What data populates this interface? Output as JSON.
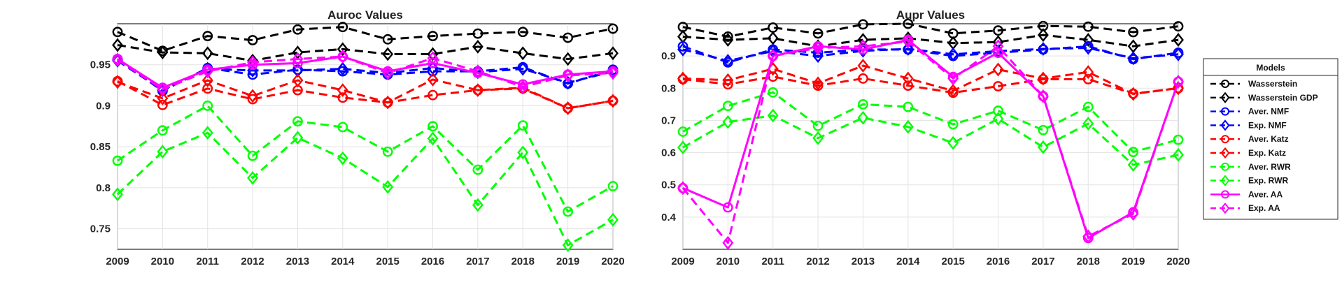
{
  "chart_data": [
    {
      "type": "line",
      "title": "Auroc Values",
      "xlabel": "",
      "ylabel": "",
      "x": [
        2009,
        2010,
        2011,
        2012,
        2013,
        2014,
        2015,
        2016,
        2017,
        2018,
        2019,
        2020
      ],
      "x_ticks": [
        "2009",
        "2010",
        "2011",
        "2012",
        "2013",
        "2014",
        "2015",
        "2016",
        "2017",
        "2018",
        "2019",
        "2020"
      ],
      "ylim": [
        0.725,
        1.0
      ],
      "y_ticks": [
        0.75,
        0.8,
        0.85,
        0.9,
        0.95
      ],
      "y_tick_labels": [
        "0.75",
        "0.8",
        "0.85",
        "0.9",
        "0.95"
      ],
      "grid": true,
      "series": [
        {
          "name": "Wasserstein",
          "values": [
            0.99,
            0.967,
            0.985,
            0.98,
            0.993,
            0.996,
            0.981,
            0.985,
            0.988,
            0.99,
            0.983,
            0.994
          ]
        },
        {
          "name": "Wasserstein GDP",
          "values": [
            0.974,
            0.965,
            0.964,
            0.955,
            0.965,
            0.969,
            0.963,
            0.963,
            0.972,
            0.964,
            0.957,
            0.964
          ]
        },
        {
          "name": "Aver. NMF",
          "values": [
            0.957,
            0.918,
            0.946,
            0.938,
            0.944,
            0.942,
            0.938,
            0.942,
            0.942,
            0.947,
            0.927,
            0.944
          ]
        },
        {
          "name": "Exp. NMF",
          "values": [
            0.955,
            0.919,
            0.945,
            0.943,
            0.943,
            0.945,
            0.94,
            0.946,
            0.941,
            0.945,
            0.928,
            0.942
          ]
        },
        {
          "name": "Aver. Katz",
          "values": [
            0.93,
            0.901,
            0.921,
            0.908,
            0.919,
            0.91,
            0.904,
            0.913,
            0.919,
            0.921,
            0.897,
            0.906
          ]
        },
        {
          "name": "Exp. Katz",
          "values": [
            0.929,
            0.909,
            0.931,
            0.912,
            0.931,
            0.919,
            0.904,
            0.932,
            0.919,
            0.922,
            0.897,
            0.906
          ]
        },
        {
          "name": "Aver. RWR",
          "values": [
            0.833,
            0.87,
            0.9,
            0.839,
            0.881,
            0.874,
            0.844,
            0.875,
            0.822,
            0.876,
            0.771,
            0.802
          ]
        },
        {
          "name": "Exp. RWR",
          "values": [
            0.792,
            0.844,
            0.867,
            0.812,
            0.861,
            0.836,
            0.801,
            0.86,
            0.779,
            0.843,
            0.73,
            0.761
          ]
        },
        {
          "name": "Aver. AA",
          "values": [
            0.957,
            0.922,
            0.944,
            0.95,
            0.952,
            0.96,
            0.942,
            0.952,
            0.94,
            0.926,
            0.938,
            0.942
          ]
        },
        {
          "name": "Exp. AA",
          "values": [
            0.956,
            0.92,
            0.942,
            0.953,
            0.957,
            0.96,
            0.94,
            0.958,
            0.942,
            0.923,
            0.937,
            0.94
          ]
        }
      ]
    },
    {
      "type": "line",
      "title": "Aupr Values",
      "xlabel": "",
      "ylabel": "",
      "x": [
        2009,
        2010,
        2011,
        2012,
        2013,
        2014,
        2015,
        2016,
        2017,
        2018,
        2019,
        2020
      ],
      "x_ticks": [
        "2009",
        "2010",
        "2011",
        "2012",
        "2013",
        "2014",
        "2015",
        "2016",
        "2017",
        "2018",
        "2019",
        "2020"
      ],
      "ylim": [
        0.3,
        1.0
      ],
      "y_ticks": [
        0.4,
        0.5,
        0.6,
        0.7,
        0.8,
        0.9
      ],
      "y_tick_labels": [
        "0.4",
        "0.5",
        "0.6",
        "0.7",
        "0.8",
        "0.9"
      ],
      "grid": true,
      "series": [
        {
          "name": "Wasserstein",
          "values": [
            0.99,
            0.96,
            0.988,
            0.97,
            0.998,
            1.0,
            0.97,
            0.979,
            0.993,
            0.991,
            0.974,
            0.992
          ]
        },
        {
          "name": "Wasserstein GDP",
          "values": [
            0.96,
            0.95,
            0.955,
            0.93,
            0.95,
            0.955,
            0.94,
            0.943,
            0.965,
            0.95,
            0.93,
            0.95
          ]
        },
        {
          "name": "Aver. NMF",
          "values": [
            0.93,
            0.88,
            0.92,
            0.91,
            0.92,
            0.92,
            0.9,
            0.91,
            0.92,
            0.93,
            0.89,
            0.91
          ]
        },
        {
          "name": "Exp. NMF",
          "values": [
            0.92,
            0.885,
            0.915,
            0.9,
            0.916,
            0.922,
            0.905,
            0.915,
            0.922,
            0.925,
            0.893,
            0.905
          ]
        },
        {
          "name": "Aver. Katz",
          "values": [
            0.828,
            0.812,
            0.836,
            0.808,
            0.83,
            0.808,
            0.786,
            0.806,
            0.828,
            0.828,
            0.783,
            0.8
          ]
        },
        {
          "name": "Exp. Katz",
          "values": [
            0.83,
            0.825,
            0.86,
            0.815,
            0.87,
            0.83,
            0.792,
            0.858,
            0.83,
            0.85,
            0.782,
            0.8
          ]
        },
        {
          "name": "Aver. RWR",
          "values": [
            0.665,
            0.745,
            0.787,
            0.683,
            0.75,
            0.742,
            0.688,
            0.73,
            0.67,
            0.742,
            0.602,
            0.64
          ]
        },
        {
          "name": "Exp. RWR",
          "values": [
            0.616,
            0.695,
            0.715,
            0.645,
            0.708,
            0.68,
            0.63,
            0.705,
            0.617,
            0.69,
            0.562,
            0.593
          ]
        },
        {
          "name": "Aver. AA",
          "values": [
            0.49,
            0.43,
            0.9,
            0.93,
            0.92,
            0.95,
            0.835,
            0.91,
            0.775,
            0.335,
            0.415,
            0.82
          ]
        },
        {
          "name": "Exp. AA",
          "values": [
            0.49,
            0.32,
            0.9,
            0.925,
            0.93,
            0.945,
            0.83,
            0.93,
            0.775,
            0.34,
            0.41,
            0.82
          ]
        }
      ]
    }
  ],
  "legend": {
    "title": "Models",
    "placement": "outside-right",
    "entries": [
      {
        "label": "Wasserstein",
        "color": "#000000",
        "marker": "circle",
        "dash": "dashed"
      },
      {
        "label": "Wasserstein GDP",
        "color": "#000000",
        "marker": "diamond",
        "dash": "dashed"
      },
      {
        "label": "Aver. NMF",
        "color": "#0000ff",
        "marker": "circle",
        "dash": "dashed"
      },
      {
        "label": "Exp. NMF",
        "color": "#0000ff",
        "marker": "diamond",
        "dash": "dashed"
      },
      {
        "label": "Aver. Katz",
        "color": "#ff0000",
        "marker": "circle",
        "dash": "dashed"
      },
      {
        "label": "Exp. Katz",
        "color": "#ff0000",
        "marker": "diamond",
        "dash": "dashed"
      },
      {
        "label": "Aver. RWR",
        "color": "#00ff00",
        "marker": "circle",
        "dash": "dashed"
      },
      {
        "label": "Exp. RWR",
        "color": "#00ff00",
        "marker": "diamond",
        "dash": "dashed"
      },
      {
        "label": "Aver. AA",
        "color": "#ff00ff",
        "marker": "circle",
        "dash": "solid"
      },
      {
        "label": "Exp. AA",
        "color": "#ff00ff",
        "marker": "diamond",
        "dash": "dashed"
      }
    ]
  }
}
